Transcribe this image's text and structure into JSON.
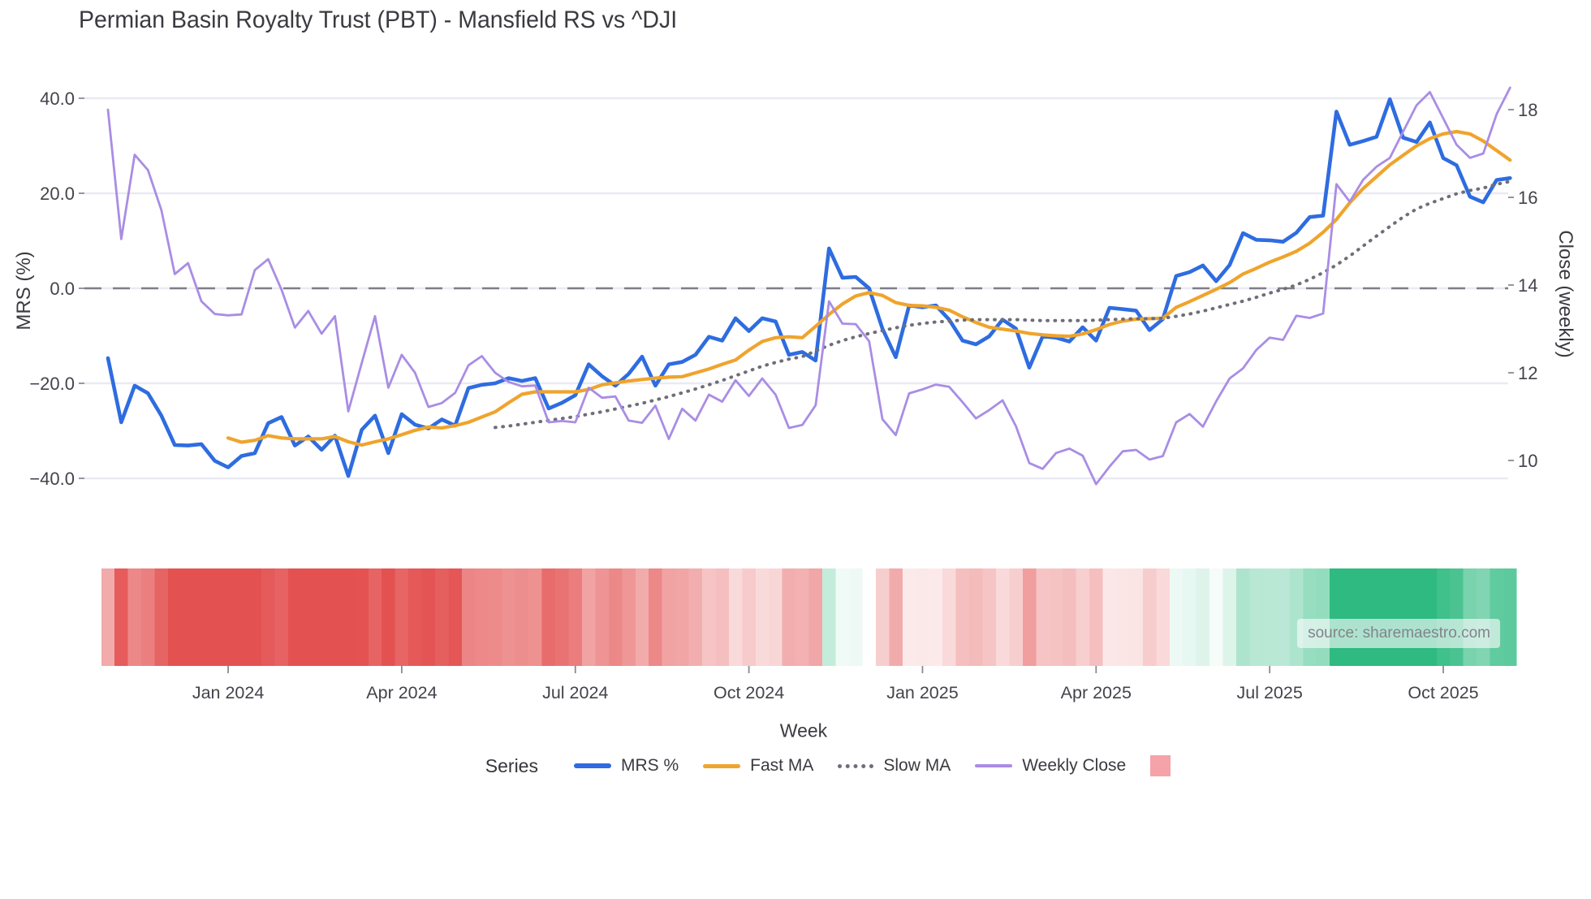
{
  "header": {
    "title": "Permian Basin Royalty Trust (PBT) - Mansfield RS vs ^DJI"
  },
  "source": {
    "text": "source: sharemaestro.com"
  },
  "legend": {
    "heading": "Series",
    "items": [
      {
        "key": "mrs",
        "label": "MRS %"
      },
      {
        "key": "fast",
        "label": "Fast MA"
      },
      {
        "key": "slow",
        "label": "Slow MA"
      },
      {
        "key": "close",
        "label": "Weekly Close"
      },
      {
        "key": "heat",
        "label": ""
      }
    ]
  },
  "colors": {
    "mrs": "#2e6ce0",
    "fast": "#efa42d",
    "slow": "#6e6e78",
    "close": "#a98de4",
    "grid": "#e9eaf3",
    "zero_line": "#7e7e88",
    "tick_mark": "#8a8a92",
    "heat_negative": "#e45151",
    "heat_positive": "#2eba80",
    "legend_square": "#f5a2a9"
  },
  "chart_data": {
    "type": "line",
    "title": "Permian Basin Royalty Trust (PBT) - Mansfield RS vs ^DJI",
    "xlabel": "Week",
    "ylabel_left": "MRS (%)",
    "ylabel_right": "Close (weekly)",
    "x_unit": "weekly points, index 0..105",
    "ylim_left": [
      -40,
      40
    ],
    "ylim_right": [
      10,
      18
    ],
    "grid": true,
    "zero_reference_line": 0,
    "legend_position": "bottom",
    "left_ticks": [
      {
        "v": 40,
        "label": "40.0"
      },
      {
        "v": 20,
        "label": "20.0"
      },
      {
        "v": 0,
        "label": "0.0"
      },
      {
        "v": -20,
        "label": "−20.0"
      },
      {
        "v": -40,
        "label": "−40.0"
      }
    ],
    "right_ticks": [
      {
        "v": 18,
        "label": "18"
      },
      {
        "v": 16,
        "label": "16"
      },
      {
        "v": 14,
        "label": "14"
      },
      {
        "v": 12,
        "label": "12"
      },
      {
        "v": 10,
        "label": "10"
      }
    ],
    "x_ticks": [
      {
        "i": 9,
        "label": "Jan 2024"
      },
      {
        "i": 22,
        "label": "Apr 2024"
      },
      {
        "i": 35,
        "label": "Jul 2024"
      },
      {
        "i": 48,
        "label": "Oct 2024"
      },
      {
        "i": 61,
        "label": "Jan 2025"
      },
      {
        "i": 74,
        "label": "Apr 2025"
      },
      {
        "i": 87,
        "label": "Jul 2025"
      },
      {
        "i": 100,
        "label": "Oct 2025"
      }
    ],
    "series": [
      {
        "key": "mrs",
        "name": "MRS %",
        "axis": "left",
        "style": "solid",
        "values": [
          -14.7,
          -28.2,
          -20.5,
          -22.1,
          -26.8,
          -33,
          -33.1,
          -32.8,
          -36.3,
          -37.7,
          -35.3,
          -34.7,
          -28.4,
          -27.1,
          -33.1,
          -31.2,
          -34,
          -31,
          -39.5,
          -29.8,
          -26.8,
          -34.7,
          -26.5,
          -28.7,
          -29.5,
          -27.6,
          -28.9,
          -21,
          -20.3,
          -20,
          -18.9,
          -19.5,
          -18.9,
          -25.3,
          -24.1,
          -22.5,
          -16,
          -18.5,
          -20.5,
          -18,
          -14.4,
          -20.5,
          -16,
          -15.5,
          -14,
          -10.2,
          -11,
          -6.3,
          -9,
          -6.3,
          -7,
          -14,
          -13.4,
          -15.2,
          8.4,
          2.2,
          2.4,
          0,
          -8.5,
          -14.5,
          -3.6,
          -4,
          -3.6,
          -6.6,
          -11,
          -11.8,
          -10.1,
          -6.6,
          -8.5,
          -16.7,
          -10.1,
          -10.4,
          -11.2,
          -8.2,
          -11,
          -4.1,
          -4.4,
          -4.7,
          -8.8,
          -6.5,
          2.6,
          3.4,
          4.8,
          1.5,
          4.9,
          11.6,
          10.2,
          10.1,
          9.8,
          11.7,
          15,
          15.3,
          37.2,
          30.2,
          31,
          31.9,
          39.8,
          31.7,
          30.8,
          34.9,
          27.4,
          25.9,
          19.3,
          18.1,
          22.8,
          23.2
        ]
      },
      {
        "key": "fast",
        "name": "Fast MA",
        "axis": "left",
        "style": "solid",
        "values": [
          null,
          null,
          null,
          null,
          null,
          null,
          null,
          null,
          null,
          -31.5,
          -32.4,
          -32,
          -31,
          -31.5,
          -31.7,
          -31.7,
          -31.7,
          -31.2,
          -32.3,
          -33,
          -32.3,
          -31.7,
          -30.8,
          -29.9,
          -29.2,
          -29.4,
          -28.9,
          -28.2,
          -27.1,
          -26,
          -24.1,
          -22.3,
          -21.8,
          -21.8,
          -21.8,
          -21.8,
          -21.3,
          -20.3,
          -19.9,
          -19.5,
          -19.2,
          -18.9,
          -18.7,
          -18.6,
          -17.8,
          -17,
          -16,
          -15.1,
          -13,
          -11.2,
          -10.4,
          -10.2,
          -10.4,
          -8,
          -5.5,
          -3.3,
          -1.6,
          -0.9,
          -1.5,
          -3,
          -3.6,
          -3.7,
          -4,
          -4.6,
          -6,
          -7.2,
          -8.2,
          -8.6,
          -9,
          -9.5,
          -9.8,
          -10,
          -10.1,
          -9.6,
          -8.7,
          -7.6,
          -6.9,
          -6.5,
          -6.4,
          -6.3,
          -4,
          -2.8,
          -1.5,
          -0.2,
          1.2,
          3,
          4.2,
          5.5,
          6.6,
          7.8,
          9.5,
          11.8,
          14.5,
          18,
          21,
          23.5,
          26,
          28,
          30,
          31.5,
          32.5,
          33,
          32.5,
          31,
          29,
          27
        ]
      },
      {
        "key": "slow",
        "name": "Slow MA",
        "axis": "left",
        "style": "dotted",
        "values": [
          null,
          null,
          null,
          null,
          null,
          null,
          null,
          null,
          null,
          null,
          null,
          null,
          null,
          null,
          null,
          null,
          null,
          null,
          null,
          null,
          null,
          null,
          null,
          null,
          null,
          null,
          null,
          null,
          null,
          -29.3,
          -29,
          -28.6,
          -28.2,
          -27.8,
          -27.4,
          -27,
          -26.5,
          -26,
          -25.4,
          -24.8,
          -24.2,
          -23.5,
          -22.8,
          -22,
          -21.2,
          -20.3,
          -19.4,
          -18.4,
          -17.4,
          -16.4,
          -15.6,
          -14.9,
          -14.4,
          -13.2,
          -12,
          -11,
          -10.2,
          -9.5,
          -8.9,
          -8.3,
          -7.8,
          -7.4,
          -7.1,
          -6.9,
          -6.7,
          -6.6,
          -6.6,
          -6.6,
          -6.6,
          -6.7,
          -6.8,
          -6.8,
          -6.8,
          -6.8,
          -6.7,
          -6.6,
          -6.5,
          -6.4,
          -6.4,
          -6.3,
          -5.9,
          -5.4,
          -4.8,
          -4.1,
          -3.4,
          -2.7,
          -1.9,
          -1,
          -0.2,
          0.7,
          1.9,
          3.3,
          4.9,
          6.8,
          8.9,
          11,
          13,
          15,
          16.7,
          17.9,
          18.9,
          19.9,
          20.6,
          21.1,
          21.9,
          22.5
        ]
      },
      {
        "key": "close",
        "name": "Weekly Close",
        "axis": "right",
        "style": "solid",
        "values": [
          18,
          15.05,
          16.97,
          16.62,
          15.71,
          14.25,
          14.5,
          13.63,
          13.34,
          13.31,
          13.33,
          14.34,
          14.59,
          13.89,
          13.03,
          13.41,
          12.89,
          13.29,
          11.12,
          12.22,
          13.29,
          11.66,
          12.41,
          12,
          11.22,
          11.31,
          11.54,
          12.17,
          12.38,
          12,
          11.79,
          11.69,
          11.71,
          10.87,
          10.9,
          10.87,
          11.66,
          11.43,
          11.46,
          10.91,
          10.86,
          11.25,
          10.49,
          11.18,
          10.91,
          11.5,
          11.34,
          11.83,
          11.47,
          11.87,
          11.5,
          10.74,
          10.81,
          11.26,
          13.63,
          13.12,
          13.11,
          12.72,
          10.94,
          10.58,
          11.53,
          11.62,
          11.73,
          11.68,
          11.33,
          10.96,
          11.15,
          11.37,
          10.78,
          9.94,
          9.81,
          10.17,
          10.27,
          10.11,
          9.46,
          9.86,
          10.21,
          10.24,
          10.02,
          10.1,
          10.87,
          11.06,
          10.77,
          11.35,
          11.87,
          12.1,
          12.52,
          12.8,
          12.75,
          13.3,
          13.25,
          13.35,
          16.3,
          15.9,
          16.4,
          16.7,
          16.9,
          17.5,
          18.1,
          18.4,
          17.8,
          17.2,
          16.9,
          17,
          17.9,
          18.5
        ]
      }
    ],
    "heatmap": {
      "based_on": "mrs",
      "description": "weekly strip below chart, red for negative MRS, green for positive",
      "negative_color": "#e45151",
      "positive_color": "#2eba80"
    }
  }
}
